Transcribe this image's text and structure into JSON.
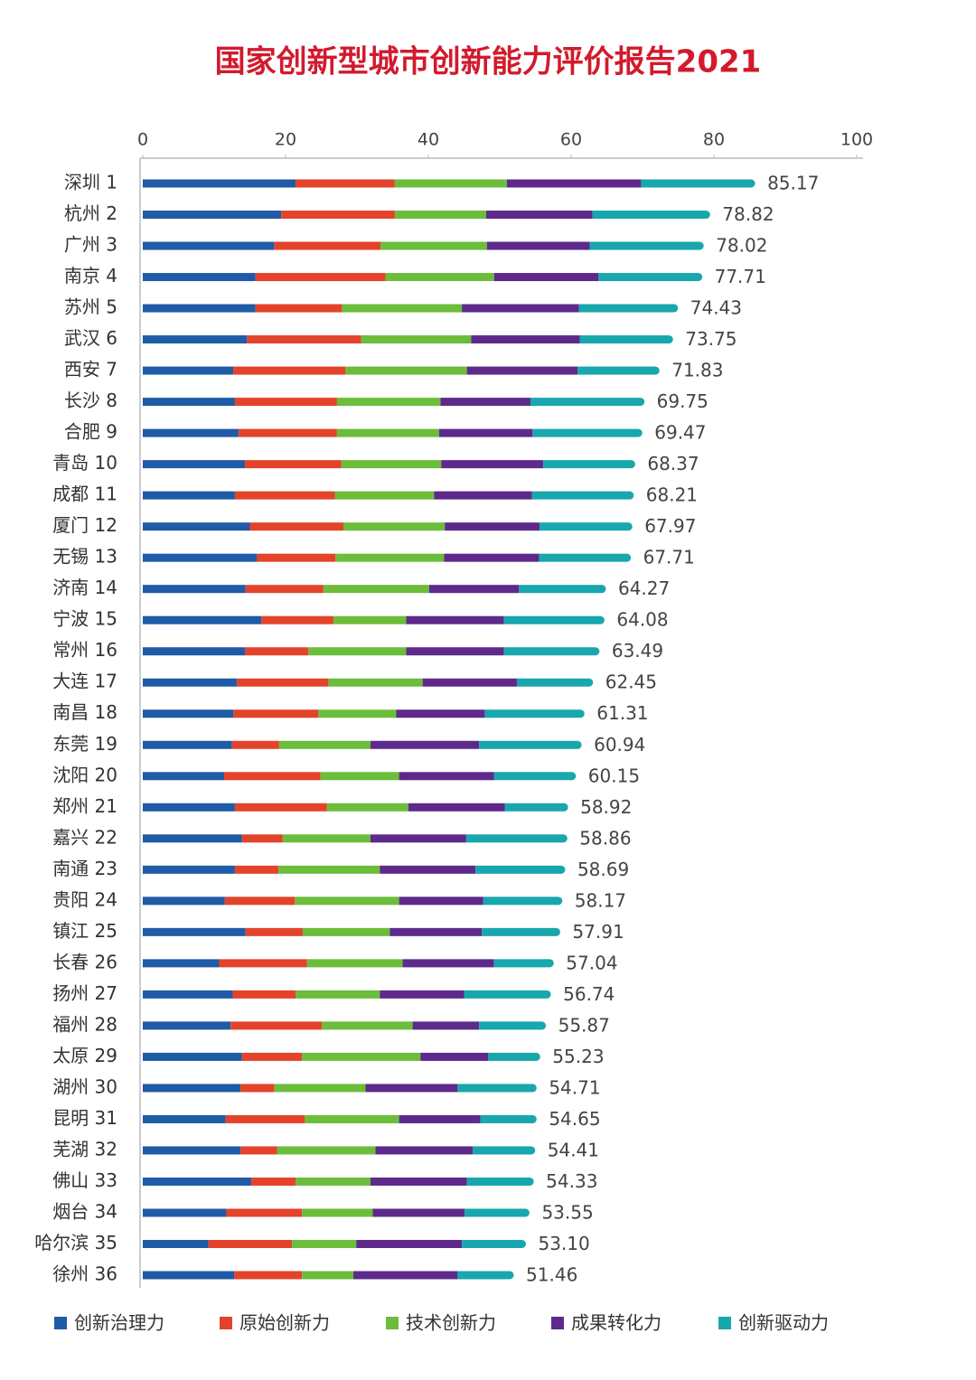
{
  "chart_data": {
    "type": "stacked-bar-horizontal",
    "title": "国家创新型城市创新能力评价报告2021",
    "categories": [
      "深圳 1",
      "杭州 2",
      "广州 3",
      "南京 4",
      "苏州 5",
      "武汉 6",
      "西安 7",
      "长沙 8",
      "合肥 9",
      "青岛 10",
      "成都 11",
      "厦门 12",
      "无锡 13",
      "济南 14",
      "宁波 15",
      "常州 16",
      "大连 17",
      "南昌 18",
      "东莞 19",
      "沈阳 20",
      "郑州 21",
      "嘉兴 22",
      "南通 23",
      "贵阳 24",
      "镇江 25",
      "长春 26",
      "扬州 27",
      "福州 28",
      "太原 29",
      "湖州 30",
      "昆明 31",
      "芜湖 32",
      "佛山 33",
      "烟台 34",
      "哈尔滨 35",
      "徐州 36"
    ],
    "series": [
      {
        "name": "创新治理力",
        "color": "#1f5ba6",
        "values": [
          21.4,
          19.4,
          18.4,
          15.8,
          15.8,
          14.6,
          12.7,
          12.9,
          13.4,
          14.3,
          12.9,
          15.0,
          16.0,
          14.4,
          16.6,
          14.3,
          13.2,
          12.7,
          12.5,
          11.4,
          12.9,
          13.9,
          12.9,
          11.5,
          14.4,
          10.7,
          12.6,
          12.3,
          13.9,
          13.7,
          11.6,
          13.7,
          15.2,
          11.7,
          9.2,
          12.8
        ]
      },
      {
        "name": "原始创新力",
        "color": "#e4432b",
        "values": [
          13.9,
          15.9,
          14.9,
          18.2,
          12.1,
          16.0,
          15.7,
          14.3,
          13.8,
          13.5,
          14.0,
          13.1,
          11.0,
          10.9,
          10.1,
          8.9,
          12.8,
          11.9,
          6.6,
          13.5,
          12.9,
          5.7,
          6.1,
          9.8,
          8.0,
          12.3,
          8.8,
          12.8,
          8.4,
          4.7,
          11.1,
          5.1,
          6.2,
          10.6,
          11.7,
          9.5
        ]
      },
      {
        "name": "技术创新力",
        "color": "#6bbd3b",
        "values": [
          15.7,
          12.8,
          14.9,
          15.2,
          16.8,
          15.4,
          17.0,
          14.5,
          14.3,
          14.0,
          13.9,
          14.2,
          15.2,
          14.8,
          10.2,
          13.7,
          13.2,
          10.9,
          12.8,
          11.0,
          11.4,
          12.3,
          14.2,
          14.6,
          12.2,
          13.4,
          11.8,
          12.7,
          16.6,
          12.8,
          13.2,
          13.8,
          10.5,
          9.9,
          9.0,
          7.2
        ]
      },
      {
        "name": "成果转化力",
        "color": "#5d2a8c",
        "values": [
          18.8,
          14.9,
          14.4,
          14.6,
          16.4,
          15.2,
          15.5,
          12.6,
          13.1,
          14.3,
          13.7,
          13.3,
          13.3,
          12.6,
          13.7,
          13.7,
          13.2,
          12.4,
          15.2,
          13.3,
          13.5,
          13.4,
          13.4,
          11.8,
          12.9,
          12.8,
          11.8,
          9.3,
          9.5,
          12.9,
          11.4,
          13.6,
          13.5,
          12.9,
          14.8,
          14.6
        ]
      },
      {
        "name": "创新驱动力",
        "color": "#18a7ad",
        "values": [
          15.4,
          15.9,
          15.4,
          14.0,
          13.3,
          12.5,
          10.9,
          15.4,
          14.8,
          12.3,
          13.7,
          12.4,
          12.3,
          11.6,
          13.5,
          12.8,
          10.1,
          13.4,
          13.8,
          10.9,
          8.3,
          13.6,
          12.0,
          10.5,
          10.4,
          7.8,
          11.6,
          8.8,
          6.7,
          10.5,
          7.3,
          8.2,
          8.8,
          8.5,
          8.4,
          7.3
        ]
      }
    ],
    "totals": [
      85.17,
      78.82,
      78.02,
      77.71,
      74.43,
      73.75,
      71.83,
      69.75,
      69.47,
      68.37,
      68.21,
      67.97,
      67.71,
      64.27,
      64.08,
      63.49,
      62.45,
      61.31,
      60.94,
      60.15,
      58.92,
      58.86,
      58.69,
      58.17,
      57.91,
      57.04,
      56.74,
      55.87,
      55.23,
      54.71,
      54.65,
      54.41,
      54.33,
      53.55,
      "53.10",
      51.46
    ],
    "xlim": [
      0,
      100
    ],
    "xticks": [
      0,
      20,
      40,
      60,
      80,
      100
    ],
    "legend": "bottom"
  }
}
